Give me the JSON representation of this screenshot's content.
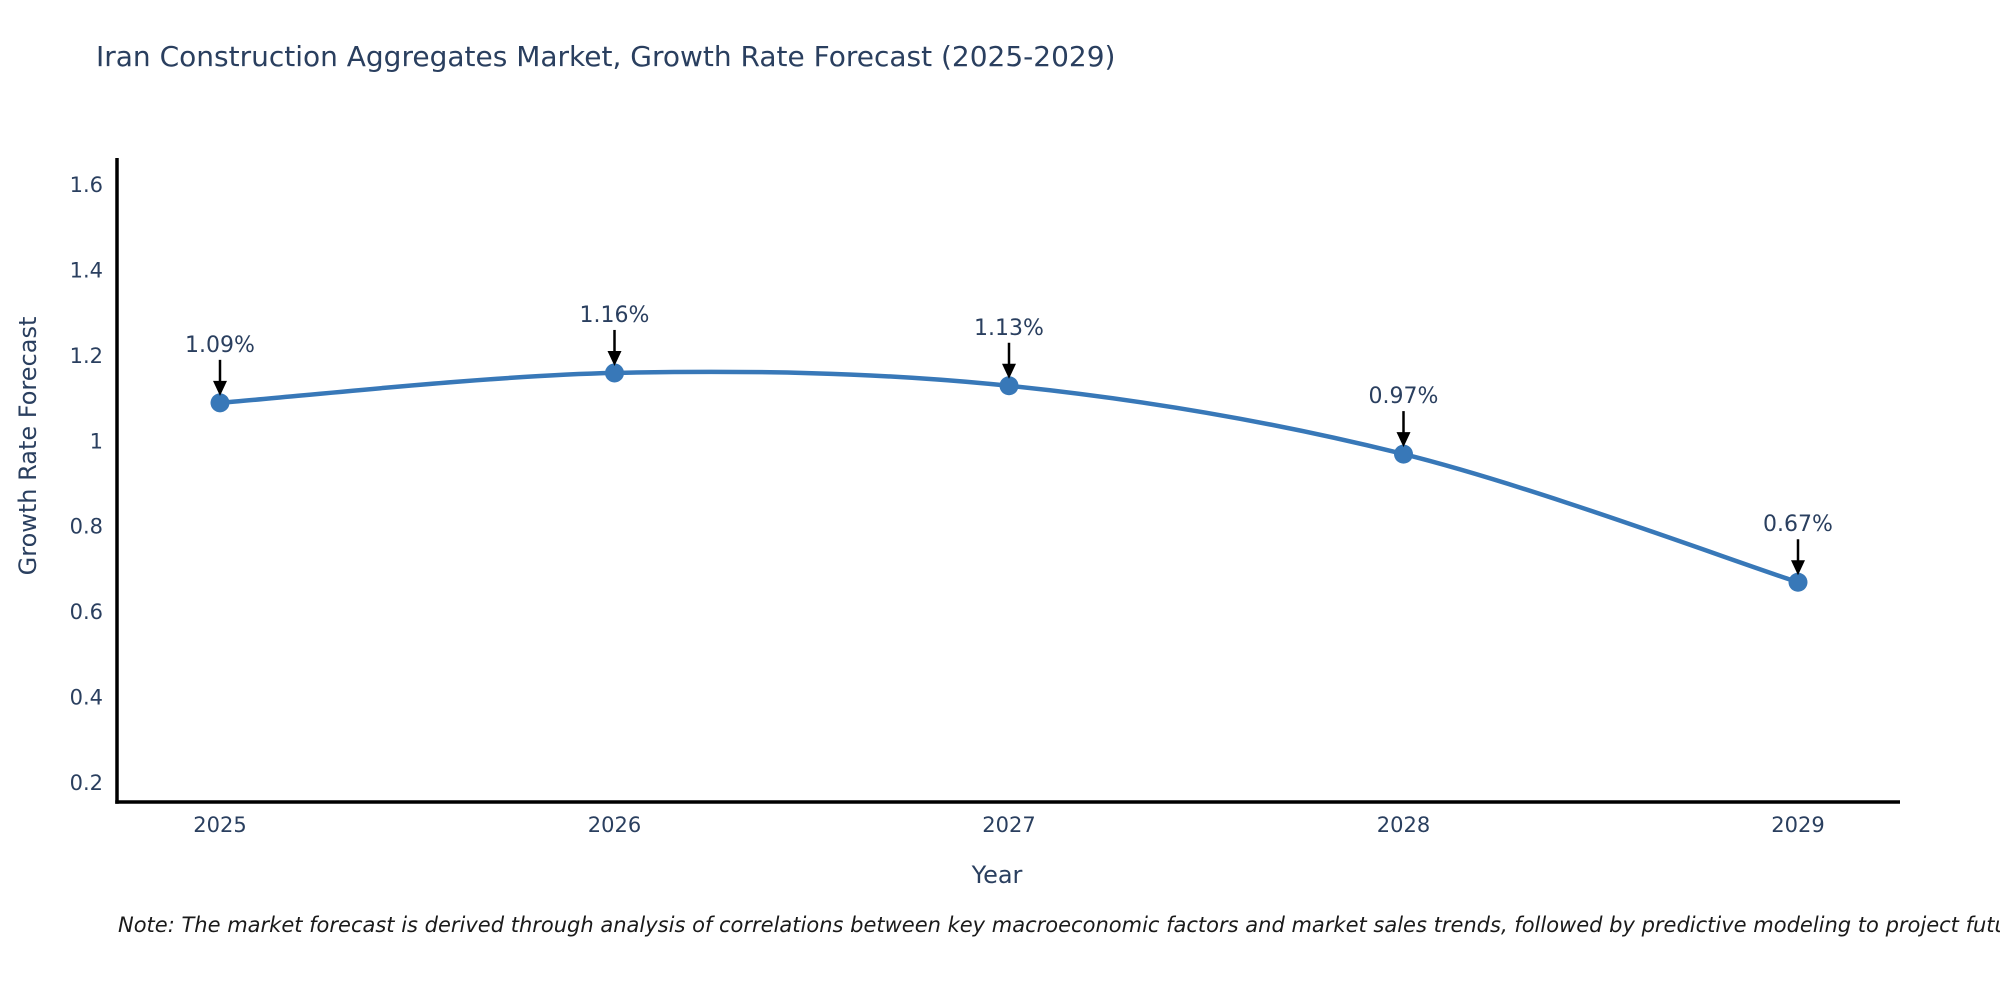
{
  "page": {
    "note": "Note: The market forecast is derived through analysis of correlations between key macroeconomic factors and market sales trends, followed by predictive modeling to project future sales"
  },
  "chart_data": {
    "type": "line",
    "title": "Iran Construction Aggregates Market, Growth Rate Forecast (2025-2029)",
    "xlabel": "Year",
    "ylabel": "Growth Rate Forecast",
    "categories": [
      "2025",
      "2026",
      "2027",
      "2028",
      "2029"
    ],
    "values": [
      1.09,
      1.16,
      1.13,
      0.97,
      0.67
    ],
    "point_labels": [
      "1.09%",
      "1.16%",
      "1.13%",
      "0.97%",
      "0.67%"
    ],
    "y_ticks": [
      0.2,
      0.4,
      0.6,
      0.8,
      1,
      1.2,
      1.4,
      1.6
    ],
    "y_tick_labels": [
      "0.2",
      "0.4",
      "0.6",
      "0.8",
      "1",
      "1.2",
      "1.4",
      "1.6"
    ],
    "ylim": [
      0.2,
      1.6
    ],
    "grid": false,
    "legend": false,
    "line_shape": "spline",
    "colors": {
      "line": "#3878b8",
      "marker": "#3878b8",
      "axis": "#000000",
      "tick_text": "#2a3f5f",
      "annotation_text": "#2a3f5f",
      "arrow": "#000000",
      "background": "#ffffff"
    }
  }
}
